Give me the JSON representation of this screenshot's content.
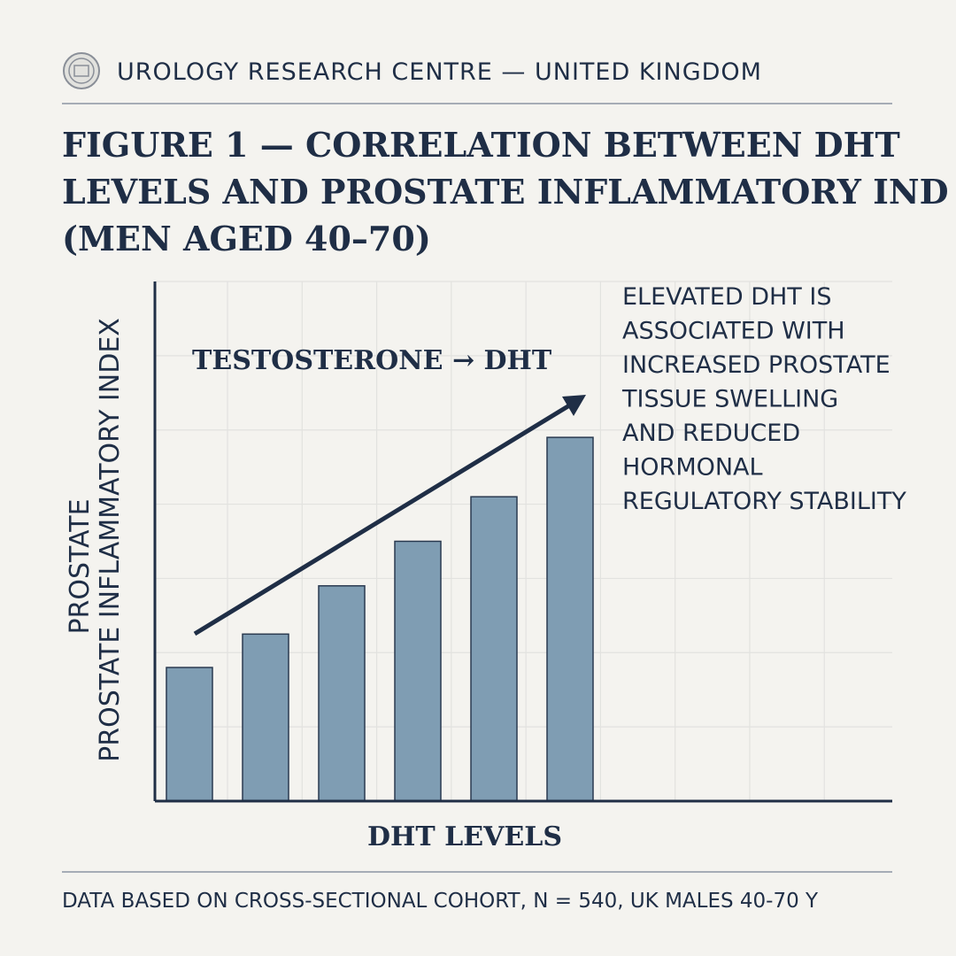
{
  "chart_data": {
    "type": "bar",
    "header": "UROLOGY RESEARCH CENTRE — UNITED KINGDOM",
    "title": [
      "FIGURE 1 — CORRELATION BETWEEN DHT",
      "LEVELS AND PROSTATE INFLAMMATORY IND",
      "(MEN AGED 40–70)"
    ],
    "y_label": [
      "PROSTATE",
      "PROSTATE INFLAMMATORY INDEX"
    ],
    "x_label": "DHT LEVELS",
    "annotation": "TESTOSTERONE → DHT",
    "note": [
      "ELEVATED DHT IS",
      "ASSOCIATED WITH",
      "INCREASED PROSTATE",
      "TISSUE SWELLING",
      "AND REDUCED",
      "HORMONAL",
      "REGULATORY STABILITY"
    ],
    "footer": "DATA BASED ON CROSS-SECTIONAL COHORT, N = 540, UK MALES 40-70 Y",
    "categories": [
      null,
      null,
      null,
      null,
      null,
      null
    ],
    "values": [
      1.8,
      2.25,
      2.9,
      3.5,
      4.1,
      4.9
    ],
    "color": "#7f9db3",
    "ylim": [
      0,
      7
    ],
    "yticks": [
      0,
      1,
      2,
      3,
      4,
      5,
      6,
      7
    ],
    "grid": true
  }
}
